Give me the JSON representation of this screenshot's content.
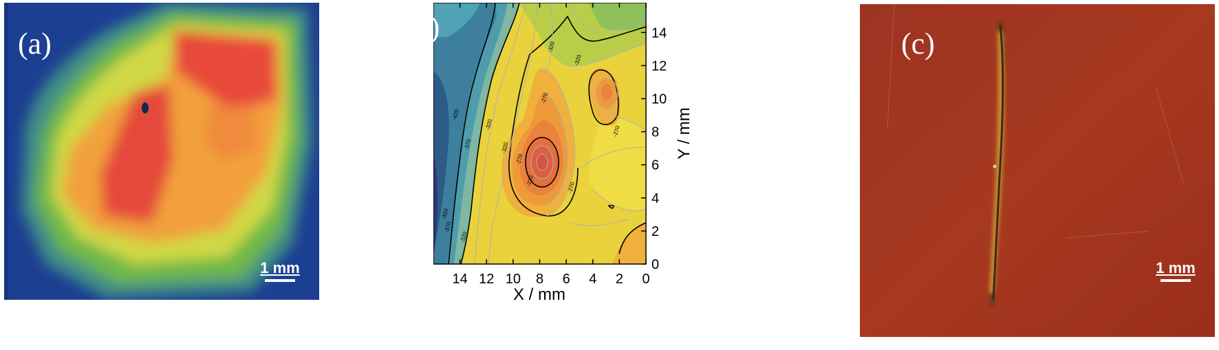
{
  "panels": {
    "a": {
      "label": "(a)",
      "scalebar": "1 mm"
    },
    "b": {
      "label": "(b)"
    },
    "c": {
      "label": "(c)",
      "scalebar": "1 mm"
    }
  },
  "colors": {
    "background": "#ffffff",
    "panel_a_background": "#1a3d8f",
    "panel_c_background": "#a8341f",
    "contour_line": "#000000"
  },
  "chart_data": {
    "type": "heatmap",
    "subtype": "contour",
    "xlabel": "X / mm",
    "ylabel": "Y / mm",
    "x_ticks": [
      14,
      12,
      10,
      8,
      6,
      4,
      2,
      0
    ],
    "y_ticks": [
      0,
      2,
      4,
      6,
      8,
      10,
      12,
      14
    ],
    "xlim": [
      16,
      0
    ],
    "ylim": [
      0,
      15.8
    ],
    "x_reversed": true,
    "y_axis_side": "right",
    "contour_labels": [
      {
        "text": "-320",
        "x": 15.0,
        "y": 3.0
      },
      {
        "text": "-370",
        "x": 14.8,
        "y": 2.2
      },
      {
        "text": "-320",
        "x": 13.6,
        "y": 1.6
      },
      {
        "text": "-370",
        "x": 13.3,
        "y": 7.2
      },
      {
        "text": "-320",
        "x": 11.7,
        "y": 8.4
      },
      {
        "text": "-320",
        "x": 10.5,
        "y": 7.0
      },
      {
        "text": "-420",
        "x": 14.2,
        "y": 9.0
      },
      {
        "text": "-320",
        "x": 7.0,
        "y": 13.1
      },
      {
        "text": "-270",
        "x": 9.4,
        "y": 6.3
      },
      {
        "text": "-270",
        "x": 7.5,
        "y": 10.0
      },
      {
        "text": "-220",
        "x": 8.6,
        "y": 5.0
      },
      {
        "text": "-270",
        "x": 5.5,
        "y": 4.6
      },
      {
        "text": "-320",
        "x": 5.0,
        "y": 12.3
      },
      {
        "text": "-270",
        "x": 2.1,
        "y": 8.0
      }
    ],
    "levels": [
      -470,
      -420,
      -370,
      -320,
      -270,
      -220
    ],
    "grid": false,
    "legend": "none"
  }
}
